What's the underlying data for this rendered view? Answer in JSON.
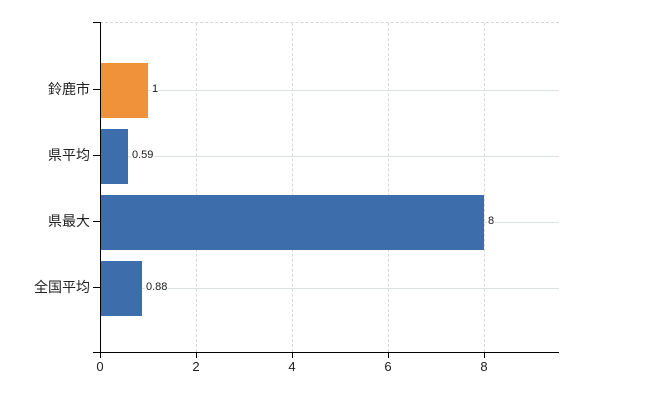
{
  "chart_data": {
    "type": "bar",
    "orientation": "horizontal",
    "title": "",
    "xlabel": "",
    "ylabel": "",
    "legend": "none",
    "categories": [
      "鈴鹿市",
      "県平均",
      "県最大",
      "全国平均"
    ],
    "values": [
      1,
      0.59,
      8,
      0.88
    ],
    "value_labels": [
      "1",
      "0.59",
      "8",
      "0.88"
    ],
    "bar_colors": [
      "#f0923a",
      "#3d6daa",
      "#3d6daa",
      "#3d6daa"
    ],
    "x_ticks": [
      0,
      2,
      4,
      6,
      8
    ],
    "x_tick_labels": [
      "0",
      "2",
      "4",
      "6",
      "8"
    ],
    "xlim": [
      0,
      9.5625
    ],
    "grid": {
      "vertical": "dashed",
      "horizontal": "solid"
    }
  },
  "colors": {
    "background": "#ffffff",
    "bar_orange": "#f0923a",
    "bar_blue": "#3d6daa",
    "axis": "#000000",
    "grid_vertical": "#d8d8d8",
    "grid_horizontal": "#dce3dc",
    "text": "#222222"
  }
}
